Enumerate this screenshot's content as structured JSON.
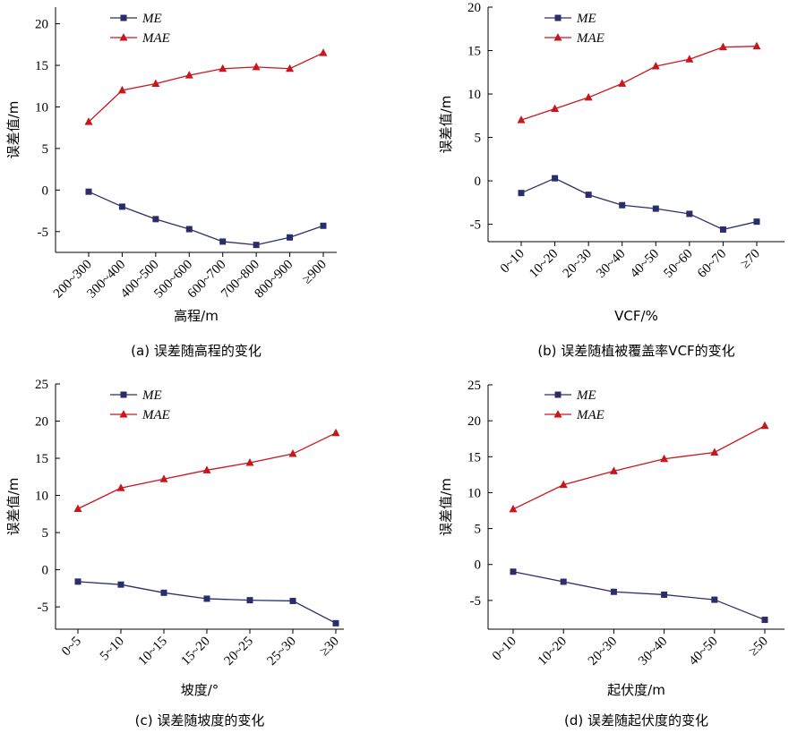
{
  "colors": {
    "ME": "#2b2d6b",
    "MAE": "#c8161d",
    "axis": "#000000"
  },
  "chart_data": [
    {
      "type": "line",
      "caption": "(a) 误差随高程的变化",
      "xlabel": "高程/m",
      "ylabel": "误差值/m",
      "categories": [
        "200~300",
        "300~400",
        "400~500",
        "500~600",
        "600~700",
        "700~800",
        "800~900",
        "≥900"
      ],
      "series": [
        {
          "name": "ME",
          "values": [
            -0.2,
            -2.0,
            -3.5,
            -4.7,
            -6.2,
            -6.6,
            -5.7,
            -4.3
          ]
        },
        {
          "name": "MAE",
          "values": [
            8.2,
            12.0,
            12.8,
            13.8,
            14.6,
            14.8,
            14.6,
            16.5
          ]
        }
      ],
      "ylim": [
        -7.5,
        22
      ],
      "yticks": [
        -5,
        0,
        5,
        10,
        15,
        20
      ],
      "legend": "top-left"
    },
    {
      "type": "line",
      "caption": "(b) 误差随植被覆盖率VCF的变化",
      "xlabel": "VCF/%",
      "ylabel": "误差值/m",
      "categories": [
        "0~10",
        "10~20",
        "20~30",
        "30~40",
        "40~50",
        "50~60",
        "60~70",
        "≥70"
      ],
      "series": [
        {
          "name": "ME",
          "values": [
            -1.4,
            0.3,
            -1.6,
            -2.8,
            -3.2,
            -3.8,
            -5.6,
            -4.7
          ]
        },
        {
          "name": "MAE",
          "values": [
            7.0,
            8.3,
            9.6,
            11.2,
            13.2,
            14.0,
            15.4,
            15.5
          ]
        }
      ],
      "ylim": [
        -7,
        20
      ],
      "yticks": [
        -5,
        0,
        5,
        10,
        15,
        20
      ],
      "legend": "top-left"
    },
    {
      "type": "line",
      "caption": "(c) 误差随坡度的变化",
      "xlabel": "坡度/°",
      "ylabel": "误差值/m",
      "categories": [
        "0~5",
        "5~10",
        "10~15",
        "15~20",
        "20~25",
        "25~30",
        "≥30"
      ],
      "series": [
        {
          "name": "ME",
          "values": [
            -1.6,
            -2.0,
            -3.1,
            -3.9,
            -4.1,
            -4.2,
            -7.2
          ]
        },
        {
          "name": "MAE",
          "values": [
            8.2,
            11.0,
            12.2,
            13.4,
            14.4,
            15.6,
            18.4
          ]
        }
      ],
      "ylim": [
        -8,
        25
      ],
      "yticks": [
        -5,
        0,
        5,
        10,
        15,
        20,
        25
      ],
      "legend": "top-left"
    },
    {
      "type": "line",
      "caption": "(d) 误差随起伏度的变化",
      "xlabel": "起伏度/m",
      "ylabel": "误差值/m",
      "categories": [
        "0~10",
        "10~20",
        "20~30",
        "30~40",
        "40~50",
        "≥50"
      ],
      "series": [
        {
          "name": "ME",
          "values": [
            -1.0,
            -2.4,
            -3.8,
            -4.2,
            -4.9,
            -7.7
          ]
        },
        {
          "name": "MAE",
          "values": [
            7.7,
            11.1,
            13.0,
            14.7,
            15.6,
            19.3
          ]
        }
      ],
      "ylim": [
        -9,
        25
      ],
      "yticks": [
        -5,
        0,
        5,
        10,
        15,
        20,
        25
      ],
      "legend": "top-left"
    }
  ]
}
